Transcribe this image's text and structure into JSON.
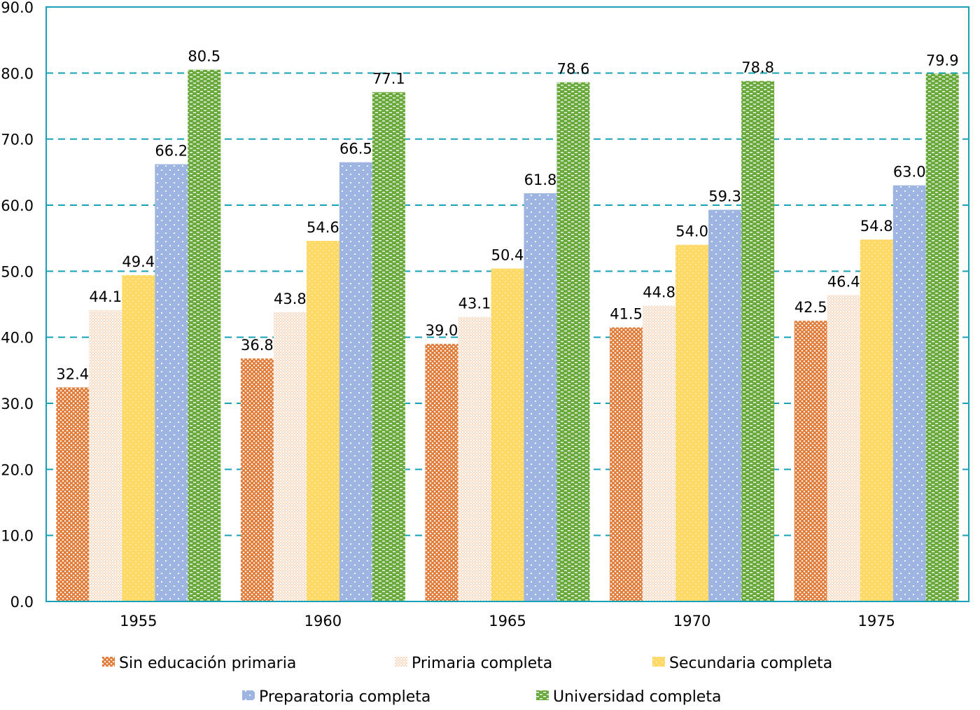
{
  "chart_data": {
    "type": "bar",
    "title": "",
    "xlabel": "",
    "ylabel": "",
    "categories": [
      "1955",
      "1960",
      "1965",
      "1970",
      "1975"
    ],
    "ylim": [
      0,
      90
    ],
    "yticks": [
      "0.0",
      "10.0",
      "20.0",
      "30.0",
      "40.0",
      "50.0",
      "60.0",
      "70.0",
      "80.0",
      "90.0"
    ],
    "grid": true,
    "legend_position": "bottom",
    "series": [
      {
        "name": "Sin educación primaria",
        "color": "#E07B39",
        "pattern": "crosshatch",
        "values": [
          32.4,
          36.8,
          39.0,
          41.5,
          42.5
        ],
        "labels": [
          "32.4",
          "36.8",
          "39.0",
          "41.5",
          "42.5"
        ]
      },
      {
        "name": "Primaria completa",
        "color": "#F6C9A8",
        "pattern": "fine-dots",
        "values": [
          44.1,
          43.8,
          43.1,
          44.8,
          46.4
        ],
        "labels": [
          "44.1",
          "43.8",
          "43.1",
          "44.8",
          "46.4"
        ]
      },
      {
        "name": "Secundaria completa",
        "color": "#FFD966",
        "pattern": "light-dots",
        "values": [
          49.4,
          54.6,
          50.4,
          54.0,
          54.8
        ],
        "labels": [
          "49.4",
          "54.6",
          "50.4",
          "54.0",
          "54.8"
        ]
      },
      {
        "name": "Preparatoria completa",
        "color": "#9DB5E0",
        "pattern": "white-dots",
        "values": [
          66.2,
          66.5,
          61.8,
          59.3,
          63.0
        ],
        "labels": [
          "66.2",
          "66.5",
          "61.8",
          "59.3",
          "63.0"
        ]
      },
      {
        "name": "Universidad completa",
        "color": "#6AAA3C",
        "pattern": "dashes",
        "values": [
          80.5,
          77.1,
          78.6,
          78.8,
          79.9
        ],
        "labels": [
          "80.5",
          "77.1",
          "78.6",
          "78.8",
          "79.9"
        ]
      }
    ],
    "colors": {
      "axis": "#17A2B8",
      "grid": "#17A2B8"
    }
  }
}
